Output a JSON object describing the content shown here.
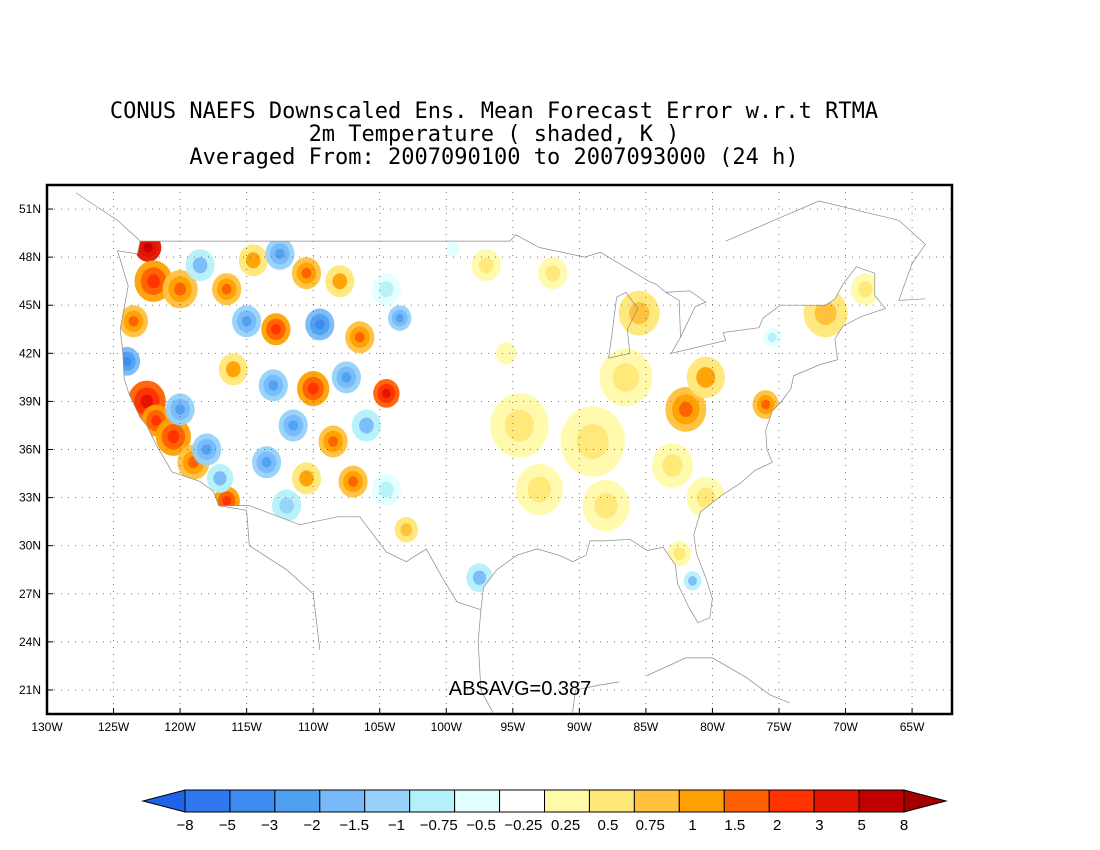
{
  "title_lines": [
    "CONUS NAEFS Downscaled Ens. Mean Forecast Error w.r.t RTMA",
    "2m Temperature ( shaded, K )",
    "Averaged From: 2007090100 to 2007093000 (24 h)"
  ],
  "map": {
    "lon_range": [
      -130,
      -62
    ],
    "lat_range": [
      19.5,
      52.5
    ],
    "lat_ticks": [
      {
        "value": 51,
        "label": "51N"
      },
      {
        "value": 48,
        "label": "48N"
      },
      {
        "value": 45,
        "label": "45N"
      },
      {
        "value": 42,
        "label": "42N"
      },
      {
        "value": 39,
        "label": "39N"
      },
      {
        "value": 36,
        "label": "36N"
      },
      {
        "value": 33,
        "label": "33N"
      },
      {
        "value": 30,
        "label": "30N"
      },
      {
        "value": 27,
        "label": "27N"
      },
      {
        "value": 24,
        "label": "24N"
      },
      {
        "value": 21,
        "label": "21N"
      }
    ],
    "lon_ticks": [
      {
        "value": -130,
        "label": "130W"
      },
      {
        "value": -125,
        "label": "125W"
      },
      {
        "value": -120,
        "label": "120W"
      },
      {
        "value": -115,
        "label": "115W"
      },
      {
        "value": -110,
        "label": "110W"
      },
      {
        "value": -105,
        "label": "105W"
      },
      {
        "value": -100,
        "label": "100W"
      },
      {
        "value": -95,
        "label": "95W"
      },
      {
        "value": -90,
        "label": "90W"
      },
      {
        "value": -85,
        "label": "85W"
      },
      {
        "value": -80,
        "label": "80W"
      },
      {
        "value": -75,
        "label": "75W"
      },
      {
        "value": -70,
        "label": "70W"
      },
      {
        "value": -65,
        "label": "65W"
      }
    ],
    "grid": true,
    "annotation": "ABSAVG=0.387"
  },
  "colorbar": {
    "labels": [
      "-8",
      "-5",
      "-3",
      "-2",
      "-1.5",
      "-1",
      "-0.75",
      "-0.5",
      "-0.25",
      "0.25",
      "0.5",
      "0.75",
      "1",
      "1.5",
      "2",
      "3",
      "5",
      "8"
    ],
    "colors": [
      "#1e64eb",
      "#2f78f0",
      "#3c8cf0",
      "#50a0f0",
      "#78b9fa",
      "#96d2fa",
      "#b4f0fa",
      "#e1ffff",
      "#ffffff",
      "#fffaaa",
      "#ffe878",
      "#ffc03c",
      "#ffa000",
      "#ff6000",
      "#ff3200",
      "#e11400",
      "#c00000",
      "#a50000"
    ]
  },
  "field": {
    "description_levels": "error categories (K)",
    "blobs": [
      {
        "lon": -122.4,
        "lat": 48.6,
        "r": 0.9,
        "v": 5
      },
      {
        "lon": -122.0,
        "lat": 46.5,
        "r": 1.3,
        "v": 2
      },
      {
        "lon": -123.5,
        "lat": 44.0,
        "r": 1.0,
        "v": 1.5
      },
      {
        "lon": -124.0,
        "lat": 41.5,
        "r": 0.9,
        "v": -2
      },
      {
        "lon": -122.5,
        "lat": 39.0,
        "r": 1.3,
        "v": 3
      },
      {
        "lon": -121.8,
        "lat": 37.8,
        "r": 1.0,
        "v": 2
      },
      {
        "lon": -120.5,
        "lat": 36.8,
        "r": 1.2,
        "v": 2
      },
      {
        "lon": -119.0,
        "lat": 35.2,
        "r": 1.1,
        "v": 1.5
      },
      {
        "lon": -116.5,
        "lat": 32.8,
        "r": 0.9,
        "v": 2
      },
      {
        "lon": -120.0,
        "lat": 38.5,
        "r": 1.0,
        "v": -1.5
      },
      {
        "lon": -118.0,
        "lat": 36.0,
        "r": 1.0,
        "v": -1.5
      },
      {
        "lon": -117.0,
        "lat": 34.2,
        "r": 0.9,
        "v": -1
      },
      {
        "lon": -120.0,
        "lat": 46.0,
        "r": 1.2,
        "v": 1.5
      },
      {
        "lon": -118.5,
        "lat": 47.5,
        "r": 1.0,
        "v": -1
      },
      {
        "lon": -116.5,
        "lat": 46.0,
        "r": 1.0,
        "v": 1.5
      },
      {
        "lon": -114.5,
        "lat": 47.8,
        "r": 1.0,
        "v": 1
      },
      {
        "lon": -112.5,
        "lat": 48.2,
        "r": 1.0,
        "v": -1.5
      },
      {
        "lon": -110.5,
        "lat": 47.0,
        "r": 1.0,
        "v": 1.5
      },
      {
        "lon": -108.0,
        "lat": 46.5,
        "r": 1.0,
        "v": 1
      },
      {
        "lon": -104.5,
        "lat": 46.0,
        "r": 1.0,
        "v": -0.5
      },
      {
        "lon": -115.0,
        "lat": 44.0,
        "r": 1.0,
        "v": -1.5
      },
      {
        "lon": -112.8,
        "lat": 43.5,
        "r": 1.0,
        "v": 2
      },
      {
        "lon": -109.5,
        "lat": 43.8,
        "r": 1.0,
        "v": -2
      },
      {
        "lon": -106.5,
        "lat": 43.0,
        "r": 1.0,
        "v": 1.5
      },
      {
        "lon": -103.5,
        "lat": 44.2,
        "r": 0.8,
        "v": -1.5
      },
      {
        "lon": -116.0,
        "lat": 41.0,
        "r": 1.0,
        "v": 1
      },
      {
        "lon": -113.0,
        "lat": 40.0,
        "r": 1.0,
        "v": -1.5
      },
      {
        "lon": -110.0,
        "lat": 39.8,
        "r": 1.1,
        "v": 2
      },
      {
        "lon": -107.5,
        "lat": 40.5,
        "r": 1.0,
        "v": -1.5
      },
      {
        "lon": -104.5,
        "lat": 39.5,
        "r": 0.9,
        "v": 3
      },
      {
        "lon": -111.5,
        "lat": 37.5,
        "r": 1.0,
        "v": -1.5
      },
      {
        "lon": -108.5,
        "lat": 36.5,
        "r": 1.0,
        "v": 1.5
      },
      {
        "lon": -106.0,
        "lat": 37.5,
        "r": 1.0,
        "v": -1
      },
      {
        "lon": -113.5,
        "lat": 35.2,
        "r": 1.0,
        "v": -1.5
      },
      {
        "lon": -110.5,
        "lat": 34.2,
        "r": 1.0,
        "v": 1
      },
      {
        "lon": -107.0,
        "lat": 34.0,
        "r": 1.0,
        "v": 1.5
      },
      {
        "lon": -112.0,
        "lat": 32.5,
        "r": 1.0,
        "v": -0.75
      },
      {
        "lon": -104.5,
        "lat": 33.5,
        "r": 1.0,
        "v": -0.5
      },
      {
        "lon": -103.0,
        "lat": 31.0,
        "r": 0.8,
        "v": 0.75
      },
      {
        "lon": -97.5,
        "lat": 28.0,
        "r": 0.9,
        "v": -1
      },
      {
        "lon": -94.5,
        "lat": 37.5,
        "r": 2.0,
        "v": 0.5
      },
      {
        "lon": -89.0,
        "lat": 36.5,
        "r": 2.2,
        "v": 0.5
      },
      {
        "lon": -93.0,
        "lat": 33.5,
        "r": 1.6,
        "v": 0.5
      },
      {
        "lon": -88.0,
        "lat": 32.5,
        "r": 1.6,
        "v": 0.5
      },
      {
        "lon": -86.5,
        "lat": 40.5,
        "r": 1.8,
        "v": 0.5
      },
      {
        "lon": -82.0,
        "lat": 38.5,
        "r": 1.4,
        "v": 1.5
      },
      {
        "lon": -80.5,
        "lat": 40.5,
        "r": 1.3,
        "v": 1
      },
      {
        "lon": -76.0,
        "lat": 38.8,
        "r": 0.9,
        "v": 1.5
      },
      {
        "lon": -85.5,
        "lat": 44.5,
        "r": 1.4,
        "v": 0.75
      },
      {
        "lon": -83.0,
        "lat": 35.0,
        "r": 1.4,
        "v": 0.5
      },
      {
        "lon": -80.5,
        "lat": 33.0,
        "r": 1.3,
        "v": 0.5
      },
      {
        "lon": -71.5,
        "lat": 44.5,
        "r": 1.5,
        "v": 0.75
      },
      {
        "lon": -68.5,
        "lat": 46.0,
        "r": 1.0,
        "v": 0.5
      },
      {
        "lon": -81.5,
        "lat": 27.8,
        "r": 0.6,
        "v": -1
      },
      {
        "lon": -82.5,
        "lat": 29.5,
        "r": 0.8,
        "v": 0.5
      },
      {
        "lon": -97.0,
        "lat": 47.5,
        "r": 1.0,
        "v": 0.5
      },
      {
        "lon": -92.0,
        "lat": 47.0,
        "r": 1.0,
        "v": 0.5
      },
      {
        "lon": -99.5,
        "lat": 48.5,
        "r": 0.9,
        "v": -0.25
      },
      {
        "lon": -75.5,
        "lat": 43.0,
        "r": 0.6,
        "v": -0.5
      },
      {
        "lon": -95.5,
        "lat": 42.0,
        "r": 1.4,
        "v": 0.25
      }
    ]
  }
}
